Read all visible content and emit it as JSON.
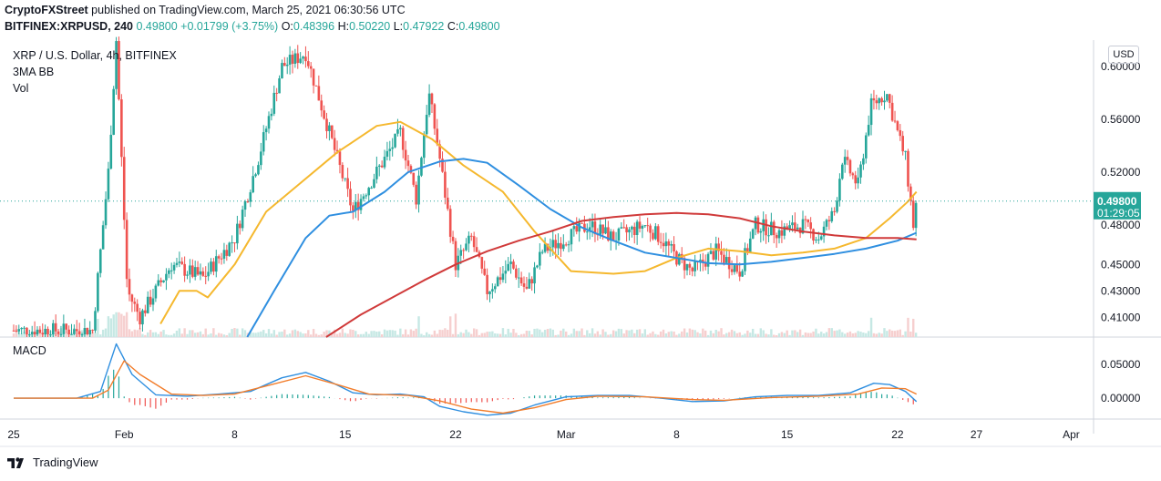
{
  "header": {
    "publisher": "CryptoFXStreet",
    "published_text": "published on TradingView.com, March 25, 2021 06:30:56 UTC",
    "symbol": "BITFINEX:XRPUSD, 240",
    "last": "0.49800",
    "change": "+0.01799 (+3.75%)",
    "o_label": "O:",
    "o": "0.48396",
    "h_label": "H:",
    "h": "0.50220",
    "l_label": "L:",
    "l": "0.47922",
    "c_label": "C:",
    "c": "0.49800"
  },
  "legend": {
    "title": "XRP / U.S. Dollar, 4h, BITFINEX",
    "indicator1": "3MA BB",
    "indicator2": "Vol"
  },
  "macd_label": "MACD",
  "price_unit": "USD",
  "last_price_tag": "0.49800",
  "countdown_tag": "01:29:05",
  "brand": "TradingView",
  "colors": {
    "up": "#26a69a",
    "down": "#ef5350",
    "ma_fast": "#f5b82e",
    "ma_mid": "#2f8fe0",
    "ma_slow": "#d03a3a",
    "macd_line": "#2f8fe0",
    "signal_line": "#f27d2b"
  },
  "chart_data": [
    {
      "type": "candlestick",
      "title": "XRP / U.S. Dollar, 4h, BITFINEX",
      "ylabel": "USD",
      "y_ticks": [
        "0.60000",
        "0.56000",
        "0.52000",
        "0.48000",
        "0.45000",
        "0.43000",
        "0.41000"
      ],
      "x_ticks": [
        "25",
        "Feb",
        "8",
        "15",
        "22",
        "Mar",
        "8",
        "15",
        "22",
        "27",
        "Apr"
      ],
      "ylim": [
        0.395,
        0.62
      ],
      "last_price": 0.498,
      "price_path": [
        {
          "d": 0,
          "p": 0.4
        },
        {
          "d": 5,
          "p": 0.4
        },
        {
          "d": 6,
          "p": 0.52
        },
        {
          "d": 6.5,
          "p": 0.62
        },
        {
          "d": 7.2,
          "p": 0.43
        },
        {
          "d": 8,
          "p": 0.41
        },
        {
          "d": 10,
          "p": 0.45
        },
        {
          "d": 12,
          "p": 0.44
        },
        {
          "d": 14,
          "p": 0.47
        },
        {
          "d": 15.5,
          "p": 0.53
        },
        {
          "d": 17,
          "p": 0.6
        },
        {
          "d": 18.5,
          "p": 0.61
        },
        {
          "d": 20,
          "p": 0.55
        },
        {
          "d": 21.5,
          "p": 0.49
        },
        {
          "d": 23,
          "p": 0.52
        },
        {
          "d": 24.5,
          "p": 0.55
        },
        {
          "d": 25.5,
          "p": 0.5
        },
        {
          "d": 26.3,
          "p": 0.58
        },
        {
          "d": 27,
          "p": 0.53
        },
        {
          "d": 28,
          "p": 0.45
        },
        {
          "d": 29,
          "p": 0.47
        },
        {
          "d": 30,
          "p": 0.43
        },
        {
          "d": 31.5,
          "p": 0.45
        },
        {
          "d": 32.5,
          "p": 0.43
        },
        {
          "d": 33.5,
          "p": 0.46
        },
        {
          "d": 35,
          "p": 0.47
        },
        {
          "d": 36.5,
          "p": 0.48
        },
        {
          "d": 38,
          "p": 0.47
        },
        {
          "d": 40,
          "p": 0.48
        },
        {
          "d": 41,
          "p": 0.47
        },
        {
          "d": 42,
          "p": 0.455
        },
        {
          "d": 43,
          "p": 0.445
        },
        {
          "d": 44.5,
          "p": 0.46
        },
        {
          "d": 46,
          "p": 0.445
        },
        {
          "d": 47,
          "p": 0.48
        },
        {
          "d": 48.5,
          "p": 0.475
        },
        {
          "d": 50,
          "p": 0.48
        },
        {
          "d": 51,
          "p": 0.47
        },
        {
          "d": 52,
          "p": 0.49
        },
        {
          "d": 52.5,
          "p": 0.53
        },
        {
          "d": 53.5,
          "p": 0.51
        },
        {
          "d": 54.3,
          "p": 0.57
        },
        {
          "d": 55.3,
          "p": 0.58
        },
        {
          "d": 56,
          "p": 0.55
        },
        {
          "d": 56.5,
          "p": 0.53
        },
        {
          "d": 57,
          "p": 0.48
        },
        {
          "d": 57.2,
          "p": 0.498
        }
      ],
      "ma_fast": [
        {
          "d": 9.3,
          "p": 0.405
        },
        {
          "d": 10.5,
          "p": 0.43
        },
        {
          "d": 11.6,
          "p": 0.43
        },
        {
          "d": 12.3,
          "p": 0.425
        },
        {
          "d": 14,
          "p": 0.45
        },
        {
          "d": 16,
          "p": 0.49
        },
        {
          "d": 18,
          "p": 0.51
        },
        {
          "d": 20.5,
          "p": 0.535
        },
        {
          "d": 23,
          "p": 0.555
        },
        {
          "d": 24.5,
          "p": 0.558
        },
        {
          "d": 26.5,
          "p": 0.545
        },
        {
          "d": 28.5,
          "p": 0.525
        },
        {
          "d": 31,
          "p": 0.505
        },
        {
          "d": 33,
          "p": 0.475
        },
        {
          "d": 35.3,
          "p": 0.445
        },
        {
          "d": 38,
          "p": 0.443
        },
        {
          "d": 40,
          "p": 0.445
        },
        {
          "d": 42,
          "p": 0.455
        },
        {
          "d": 44,
          "p": 0.462
        },
        {
          "d": 46,
          "p": 0.46
        },
        {
          "d": 48,
          "p": 0.457
        },
        {
          "d": 50,
          "p": 0.459
        },
        {
          "d": 52,
          "p": 0.462
        },
        {
          "d": 54,
          "p": 0.47
        },
        {
          "d": 55.5,
          "p": 0.485
        },
        {
          "d": 56.6,
          "p": 0.497
        },
        {
          "d": 57.2,
          "p": 0.505
        }
      ],
      "ma_mid": [
        {
          "d": 14.8,
          "p": 0.395
        },
        {
          "d": 16.5,
          "p": 0.43
        },
        {
          "d": 18.5,
          "p": 0.47
        },
        {
          "d": 20,
          "p": 0.487
        },
        {
          "d": 21.5,
          "p": 0.49
        },
        {
          "d": 23.5,
          "p": 0.505
        },
        {
          "d": 25,
          "p": 0.52
        },
        {
          "d": 27,
          "p": 0.528
        },
        {
          "d": 28.5,
          "p": 0.53
        },
        {
          "d": 30,
          "p": 0.527
        },
        {
          "d": 32,
          "p": 0.51
        },
        {
          "d": 34,
          "p": 0.492
        },
        {
          "d": 36,
          "p": 0.478
        },
        {
          "d": 38,
          "p": 0.468
        },
        {
          "d": 40,
          "p": 0.459
        },
        {
          "d": 42,
          "p": 0.455
        },
        {
          "d": 44,
          "p": 0.451
        },
        {
          "d": 46,
          "p": 0.45
        },
        {
          "d": 48,
          "p": 0.452
        },
        {
          "d": 50,
          "p": 0.455
        },
        {
          "d": 52,
          "p": 0.458
        },
        {
          "d": 54,
          "p": 0.462
        },
        {
          "d": 56,
          "p": 0.468
        },
        {
          "d": 57.2,
          "p": 0.474
        }
      ],
      "ma_slow": [
        {
          "d": 19.8,
          "p": 0.395
        },
        {
          "d": 22,
          "p": 0.412
        },
        {
          "d": 24,
          "p": 0.425
        },
        {
          "d": 26,
          "p": 0.438
        },
        {
          "d": 28,
          "p": 0.45
        },
        {
          "d": 30,
          "p": 0.46
        },
        {
          "d": 32,
          "p": 0.468
        },
        {
          "d": 34,
          "p": 0.475
        },
        {
          "d": 36,
          "p": 0.483
        },
        {
          "d": 38,
          "p": 0.486
        },
        {
          "d": 40,
          "p": 0.488
        },
        {
          "d": 42,
          "p": 0.489
        },
        {
          "d": 44,
          "p": 0.488
        },
        {
          "d": 46,
          "p": 0.485
        },
        {
          "d": 48,
          "p": 0.479
        },
        {
          "d": 50,
          "p": 0.475
        },
        {
          "d": 52,
          "p": 0.472
        },
        {
          "d": 54,
          "p": 0.47
        },
        {
          "d": 56,
          "p": 0.47
        },
        {
          "d": 57.2,
          "p": 0.469
        }
      ]
    },
    {
      "type": "line",
      "title": "MACD",
      "y_ticks": [
        "0.05000",
        "0.00000"
      ],
      "ylim": [
        -0.028,
        0.09
      ],
      "macd": [
        {
          "d": 0,
          "p": 0
        },
        {
          "d": 4,
          "p": 0
        },
        {
          "d": 5.5,
          "p": 0.01
        },
        {
          "d": 6.5,
          "p": 0.08
        },
        {
          "d": 7.5,
          "p": 0.035
        },
        {
          "d": 9,
          "p": 0.005
        },
        {
          "d": 11,
          "p": 0.003
        },
        {
          "d": 13,
          "p": 0.006
        },
        {
          "d": 15,
          "p": 0.01
        },
        {
          "d": 17,
          "p": 0.03
        },
        {
          "d": 18.5,
          "p": 0.038
        },
        {
          "d": 20,
          "p": 0.025
        },
        {
          "d": 21.5,
          "p": 0.008
        },
        {
          "d": 23,
          "p": 0.005
        },
        {
          "d": 24.5,
          "p": 0.006
        },
        {
          "d": 26,
          "p": 0.002
        },
        {
          "d": 27,
          "p": -0.012
        },
        {
          "d": 28.5,
          "p": -0.02
        },
        {
          "d": 30,
          "p": -0.025
        },
        {
          "d": 31.5,
          "p": -0.022
        },
        {
          "d": 33,
          "p": -0.01
        },
        {
          "d": 35,
          "p": 0.002
        },
        {
          "d": 37,
          "p": 0.004
        },
        {
          "d": 39,
          "p": 0.004
        },
        {
          "d": 41,
          "p": 0
        },
        {
          "d": 43,
          "p": -0.005
        },
        {
          "d": 45,
          "p": -0.004
        },
        {
          "d": 47,
          "p": 0.002
        },
        {
          "d": 49,
          "p": 0.004
        },
        {
          "d": 51,
          "p": 0.004
        },
        {
          "d": 53,
          "p": 0.008
        },
        {
          "d": 54.5,
          "p": 0.022
        },
        {
          "d": 55.5,
          "p": 0.02
        },
        {
          "d": 56.5,
          "p": 0.01
        },
        {
          "d": 57.2,
          "p": -0.005
        }
      ],
      "signal": [
        {
          "d": 0,
          "p": 0
        },
        {
          "d": 5,
          "p": 0
        },
        {
          "d": 6,
          "p": 0.012
        },
        {
          "d": 7,
          "p": 0.055
        },
        {
          "d": 8,
          "p": 0.035
        },
        {
          "d": 10,
          "p": 0.006
        },
        {
          "d": 12,
          "p": 0.004
        },
        {
          "d": 14,
          "p": 0.006
        },
        {
          "d": 16,
          "p": 0.018
        },
        {
          "d": 18.5,
          "p": 0.033
        },
        {
          "d": 20.5,
          "p": 0.02
        },
        {
          "d": 22.5,
          "p": 0.006
        },
        {
          "d": 25,
          "p": 0.004
        },
        {
          "d": 27,
          "p": -0.004
        },
        {
          "d": 29,
          "p": -0.016
        },
        {
          "d": 31,
          "p": -0.022
        },
        {
          "d": 33,
          "p": -0.014
        },
        {
          "d": 35,
          "p": -0.002
        },
        {
          "d": 37,
          "p": 0.003
        },
        {
          "d": 40,
          "p": 0.002
        },
        {
          "d": 43,
          "p": -0.002
        },
        {
          "d": 45,
          "p": -0.003
        },
        {
          "d": 48,
          "p": 0.001
        },
        {
          "d": 51,
          "p": 0.003
        },
        {
          "d": 53.5,
          "p": 0.006
        },
        {
          "d": 55,
          "p": 0.015
        },
        {
          "d": 56.5,
          "p": 0.014
        },
        {
          "d": 57.2,
          "p": 0.006
        }
      ]
    }
  ]
}
